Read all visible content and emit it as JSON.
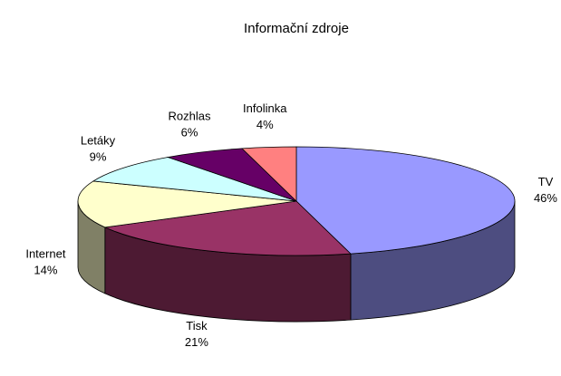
{
  "chart_data": {
    "type": "pie3d",
    "title": "Informační zdroje",
    "categories": [
      "TV",
      "Tisk",
      "Internet",
      "Letáky",
      "Rozhlas",
      "Infolinka"
    ],
    "values": [
      46,
      21,
      14,
      9,
      6,
      4
    ],
    "value_labels": [
      "46%",
      "21%",
      "14%",
      "9%",
      "6%",
      "4%"
    ],
    "colors": [
      "#9999ff",
      "#993366",
      "#ffffcc",
      "#ccffff",
      "#660066",
      "#ff8080"
    ]
  }
}
